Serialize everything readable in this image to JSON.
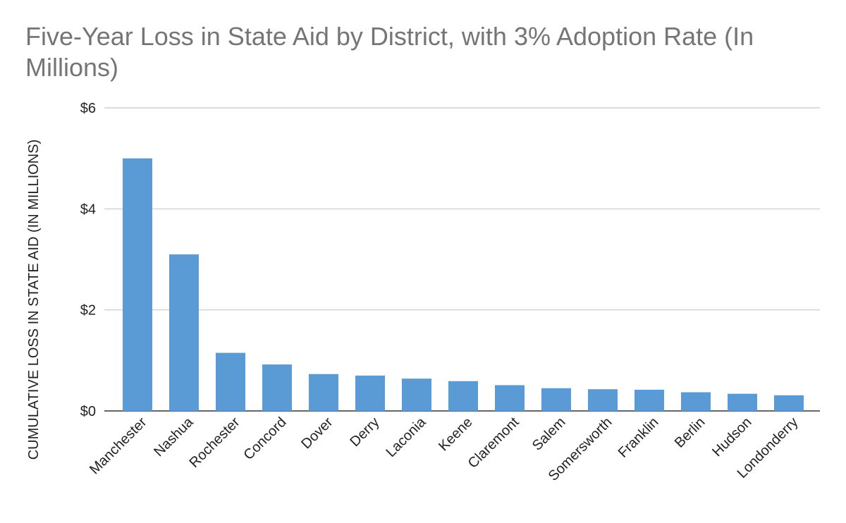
{
  "chart_data": {
    "type": "bar",
    "title": "Five-Year Loss in State Aid by District, with 3% Adoption Rate (In Millions)",
    "xlabel": "",
    "ylabel": "CUMULATIVE LOSS IN STATE AID (IN MILLIONS)",
    "categories": [
      "Manchester",
      "Nashua",
      "Rochester",
      "Concord",
      "Dover",
      "Derry",
      "Laconia",
      "Keene",
      "Claremont",
      "Salem",
      "Somersworth",
      "Franklin",
      "Berlin",
      "Hudson",
      "Londonderry"
    ],
    "values": [
      5.0,
      3.1,
      1.15,
      0.92,
      0.73,
      0.7,
      0.64,
      0.59,
      0.51,
      0.45,
      0.43,
      0.42,
      0.37,
      0.34,
      0.31
    ],
    "ylim": [
      0,
      6
    ],
    "yticks": [
      0,
      2,
      4,
      6
    ],
    "ytick_labels": [
      "$0",
      "$2",
      "$4",
      "$6"
    ],
    "grid": true,
    "legend": "none",
    "bar_color": "#5b9bd5"
  }
}
